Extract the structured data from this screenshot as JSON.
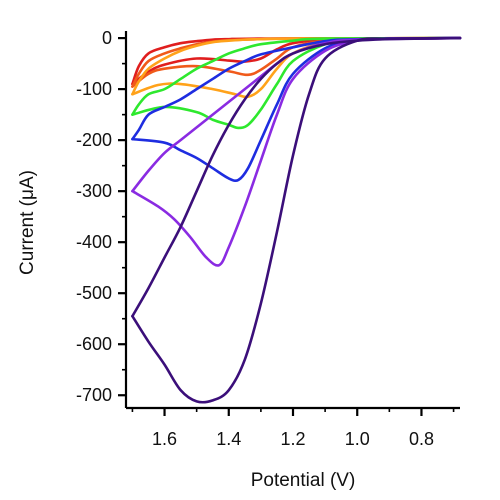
{
  "chart_data": {
    "type": "line",
    "subtype": "cyclic voltammogram",
    "xlabel": "Potential (V)",
    "ylabel": "Current (μA)",
    "xlim": [
      1.72,
      0.68
    ],
    "ylim": [
      -725,
      10
    ],
    "x_reversed": true,
    "x_ticks": [
      1.6,
      1.4,
      1.2,
      1.0,
      0.8
    ],
    "x_tick_labels": [
      "1.6",
      "1.4",
      "1.2",
      "1.0",
      "0.8"
    ],
    "y_ticks": [
      0,
      -100,
      -200,
      -300,
      -400,
      -500,
      -600,
      -700
    ],
    "y_tick_labels": [
      "0",
      "-100",
      "-200",
      "-300",
      "-400",
      "-500",
      "-600",
      "-700"
    ],
    "grid": false,
    "legend": "none",
    "series": [
      {
        "color": "#3b0f7a",
        "forward": [
          [
            0.68,
            0
          ],
          [
            0.9,
            -1
          ],
          [
            1.0,
            -5
          ],
          [
            1.1,
            -40
          ],
          [
            1.15,
            -110
          ],
          [
            1.2,
            -230
          ],
          [
            1.25,
            -380
          ],
          [
            1.3,
            -520
          ],
          [
            1.35,
            -630
          ],
          [
            1.4,
            -690
          ],
          [
            1.45,
            -710
          ],
          [
            1.5,
            -712
          ],
          [
            1.55,
            -690
          ],
          [
            1.6,
            -640
          ],
          [
            1.65,
            -595
          ],
          [
            1.7,
            -545
          ]
        ],
        "reverse": [
          [
            1.7,
            -545
          ],
          [
            1.65,
            -490
          ],
          [
            1.6,
            -430
          ],
          [
            1.55,
            -370
          ],
          [
            1.5,
            -300
          ],
          [
            1.45,
            -230
          ],
          [
            1.4,
            -170
          ],
          [
            1.35,
            -120
          ],
          [
            1.3,
            -80
          ],
          [
            1.25,
            -50
          ],
          [
            1.2,
            -30
          ],
          [
            1.1,
            -12
          ],
          [
            1.0,
            -5
          ],
          [
            0.9,
            -2
          ],
          [
            0.68,
            0
          ]
        ]
      },
      {
        "color": "#8a2be2",
        "forward": [
          [
            0.68,
            0
          ],
          [
            0.9,
            -1
          ],
          [
            1.0,
            -5
          ],
          [
            1.1,
            -25
          ],
          [
            1.2,
            -80
          ],
          [
            1.25,
            -150
          ],
          [
            1.3,
            -240
          ],
          [
            1.35,
            -330
          ],
          [
            1.4,
            -410
          ],
          [
            1.43,
            -445
          ],
          [
            1.47,
            -430
          ],
          [
            1.52,
            -390
          ],
          [
            1.57,
            -355
          ],
          [
            1.62,
            -330
          ],
          [
            1.7,
            -300
          ]
        ],
        "reverse": [
          [
            1.7,
            -300
          ],
          [
            1.65,
            -260
          ],
          [
            1.6,
            -225
          ],
          [
            1.55,
            -200
          ],
          [
            1.5,
            -175
          ],
          [
            1.45,
            -150
          ],
          [
            1.4,
            -125
          ],
          [
            1.35,
            -100
          ],
          [
            1.3,
            -75
          ],
          [
            1.25,
            -50
          ],
          [
            1.2,
            -30
          ],
          [
            1.1,
            -10
          ],
          [
            1.0,
            -3
          ],
          [
            0.68,
            0
          ]
        ]
      },
      {
        "color": "#1e2de0",
        "forward": [
          [
            0.68,
            0
          ],
          [
            0.9,
            -1
          ],
          [
            1.0,
            -4
          ],
          [
            1.1,
            -20
          ],
          [
            1.2,
            -70
          ],
          [
            1.25,
            -130
          ],
          [
            1.3,
            -200
          ],
          [
            1.34,
            -255
          ],
          [
            1.37,
            -278
          ],
          [
            1.4,
            -275
          ],
          [
            1.45,
            -255
          ],
          [
            1.5,
            -235
          ],
          [
            1.55,
            -220
          ],
          [
            1.6,
            -205
          ],
          [
            1.7,
            -198
          ]
        ],
        "reverse": [
          [
            1.7,
            -198
          ],
          [
            1.68,
            -180
          ],
          [
            1.65,
            -150
          ],
          [
            1.6,
            -135
          ],
          [
            1.55,
            -120
          ],
          [
            1.5,
            -100
          ],
          [
            1.45,
            -80
          ],
          [
            1.4,
            -60
          ],
          [
            1.35,
            -45
          ],
          [
            1.3,
            -32
          ],
          [
            1.2,
            -18
          ],
          [
            1.1,
            -6
          ],
          [
            1.0,
            -2
          ],
          [
            0.68,
            0
          ]
        ]
      },
      {
        "color": "#2ee82e",
        "forward": [
          [
            0.68,
            0
          ],
          [
            0.9,
            -1
          ],
          [
            1.0,
            -3
          ],
          [
            1.1,
            -12
          ],
          [
            1.2,
            -45
          ],
          [
            1.25,
            -90
          ],
          [
            1.3,
            -140
          ],
          [
            1.34,
            -170
          ],
          [
            1.37,
            -176
          ],
          [
            1.4,
            -170
          ],
          [
            1.45,
            -160
          ],
          [
            1.5,
            -145
          ],
          [
            1.6,
            -135
          ],
          [
            1.7,
            -150
          ]
        ],
        "reverse": [
          [
            1.7,
            -150
          ],
          [
            1.68,
            -130
          ],
          [
            1.65,
            -110
          ],
          [
            1.6,
            -100
          ],
          [
            1.55,
            -80
          ],
          [
            1.5,
            -60
          ],
          [
            1.45,
            -45
          ],
          [
            1.4,
            -30
          ],
          [
            1.35,
            -20
          ],
          [
            1.3,
            -12
          ],
          [
            1.2,
            -5
          ],
          [
            1.1,
            -1
          ],
          [
            0.68,
            0
          ]
        ]
      },
      {
        "color": "#ffa21a",
        "forward": [
          [
            0.68,
            0
          ],
          [
            0.9,
            -1
          ],
          [
            1.0,
            -2
          ],
          [
            1.1,
            -8
          ],
          [
            1.2,
            -30
          ],
          [
            1.25,
            -60
          ],
          [
            1.3,
            -100
          ],
          [
            1.34,
            -115
          ],
          [
            1.38,
            -110
          ],
          [
            1.45,
            -100
          ],
          [
            1.55,
            -90
          ],
          [
            1.62,
            -92
          ],
          [
            1.7,
            -110
          ]
        ],
        "reverse": [
          [
            1.7,
            -110
          ],
          [
            1.68,
            -85
          ],
          [
            1.65,
            -60
          ],
          [
            1.6,
            -40
          ],
          [
            1.55,
            -25
          ],
          [
            1.5,
            -15
          ],
          [
            1.45,
            -8
          ],
          [
            1.4,
            -5
          ],
          [
            1.35,
            -3
          ],
          [
            1.3,
            -2
          ],
          [
            1.2,
            -1
          ],
          [
            0.68,
            0
          ]
        ]
      },
      {
        "color": "#f05a1a",
        "forward": [
          [
            0.68,
            0
          ],
          [
            0.9,
            -1
          ],
          [
            1.0,
            -2
          ],
          [
            1.1,
            -5
          ],
          [
            1.2,
            -18
          ],
          [
            1.25,
            -40
          ],
          [
            1.3,
            -62
          ],
          [
            1.34,
            -72
          ],
          [
            1.4,
            -65
          ],
          [
            1.5,
            -55
          ],
          [
            1.6,
            -60
          ],
          [
            1.65,
            -70
          ],
          [
            1.7,
            -95
          ]
        ],
        "reverse": [
          [
            1.7,
            -95
          ],
          [
            1.68,
            -70
          ],
          [
            1.65,
            -45
          ],
          [
            1.6,
            -30
          ],
          [
            1.55,
            -20
          ],
          [
            1.5,
            -12
          ],
          [
            1.45,
            -7
          ],
          [
            1.4,
            -4
          ],
          [
            1.3,
            -2
          ],
          [
            1.2,
            -1
          ],
          [
            0.68,
            0
          ]
        ]
      },
      {
        "color": "#e01e1e",
        "forward": [
          [
            0.68,
            0
          ],
          [
            0.9,
            -1
          ],
          [
            1.0,
            -1
          ],
          [
            1.1,
            -3
          ],
          [
            1.2,
            -10
          ],
          [
            1.25,
            -22
          ],
          [
            1.3,
            -40
          ],
          [
            1.35,
            -46
          ],
          [
            1.4,
            -44
          ],
          [
            1.5,
            -40
          ],
          [
            1.6,
            -52
          ],
          [
            1.65,
            -66
          ],
          [
            1.7,
            -90
          ]
        ],
        "reverse": [
          [
            1.7,
            -90
          ],
          [
            1.68,
            -55
          ],
          [
            1.65,
            -30
          ],
          [
            1.6,
            -18
          ],
          [
            1.55,
            -10
          ],
          [
            1.5,
            -6
          ],
          [
            1.45,
            -3
          ],
          [
            1.4,
            -2
          ],
          [
            1.3,
            -1
          ],
          [
            0.68,
            0
          ]
        ]
      }
    ]
  }
}
